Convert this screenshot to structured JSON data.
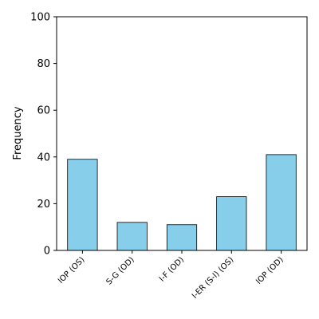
{
  "chart_data": {
    "type": "bar",
    "y_label": "Frequency",
    "categories": [
      "IOP (OS)",
      "S-G (OD)",
      "I-F (OD)",
      "I-ER (S-I) (OS)",
      "IOP (OD)"
    ],
    "values": [
      39,
      12,
      11,
      23,
      41
    ],
    "color": "#87ceeb",
    "ylim": [
      0,
      100
    ],
    "yticks": [
      0,
      20,
      40,
      60,
      80,
      100
    ],
    "grid": false
  }
}
